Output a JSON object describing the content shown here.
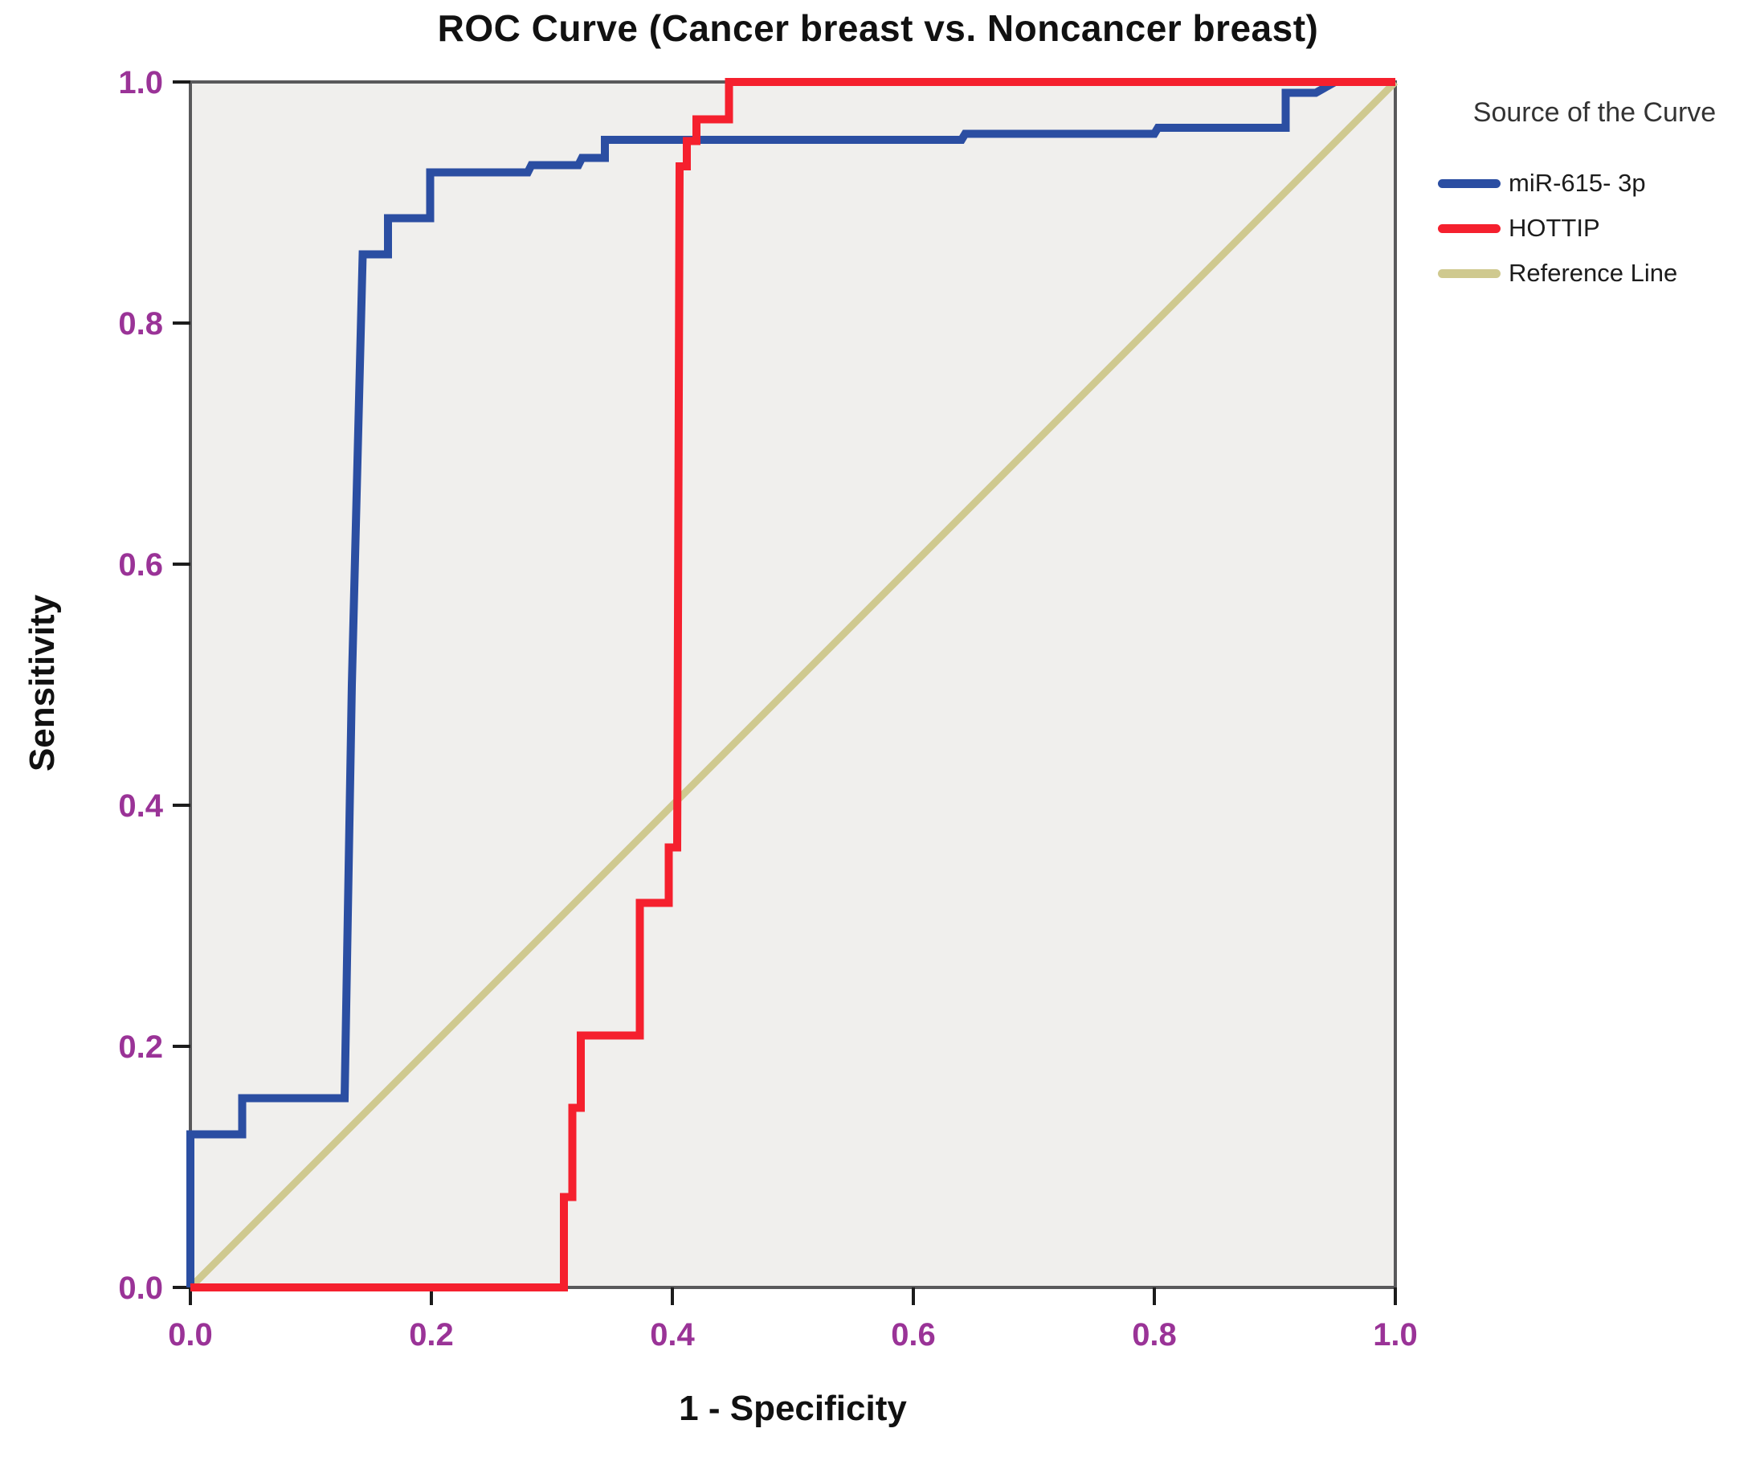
{
  "chart_data": {
    "type": "line",
    "title": "ROC Curve (Cancer breast vs. Noncancer breast)",
    "xlabel": "1 - Specificity",
    "ylabel": "Sensitivity",
    "xlim": [
      0,
      1
    ],
    "ylim": [
      0,
      1
    ],
    "grid": false,
    "legend_position": "right",
    "legend_title": "Source of the Curve",
    "x_ticks": [
      "0.0",
      "0.2",
      "0.4",
      "0.6",
      "0.8",
      "1.0"
    ],
    "y_ticks": [
      "0.0",
      "0.2",
      "0.4",
      "0.6",
      "0.8",
      "1.0"
    ],
    "colors": {
      "plot_background": "#f0efed",
      "plot_border": "#59595b",
      "tick_mark": "#1c1c1c",
      "tick_label": "#9a3397",
      "title": "#111111",
      "axis_title": "#111111",
      "legend_title": "#333333",
      "legend_text": "#1c1c1c"
    },
    "series": [
      {
        "name": "Reference Line",
        "color": "#cfc98f",
        "stroke_width": 9,
        "points": [
          [
            0,
            0
          ],
          [
            1,
            1
          ]
        ]
      },
      {
        "name": "miR-615- 3p",
        "color": "#2b4ea2",
        "stroke_width": 10,
        "points": [
          [
            0,
            0
          ],
          [
            0,
            0.127
          ],
          [
            0.043,
            0.127
          ],
          [
            0.043,
            0.157
          ],
          [
            0.128,
            0.157
          ],
          [
            0.134,
            0.5
          ],
          [
            0.143,
            0.857
          ],
          [
            0.164,
            0.857
          ],
          [
            0.164,
            0.887
          ],
          [
            0.199,
            0.887
          ],
          [
            0.199,
            0.925
          ],
          [
            0.28,
            0.925
          ],
          [
            0.283,
            0.931
          ],
          [
            0.322,
            0.931
          ],
          [
            0.325,
            0.937
          ],
          [
            0.344,
            0.937
          ],
          [
            0.344,
            0.952
          ],
          [
            0.64,
            0.952
          ],
          [
            0.643,
            0.957
          ],
          [
            0.8,
            0.957
          ],
          [
            0.803,
            0.962
          ],
          [
            0.909,
            0.962
          ],
          [
            0.909,
            0.991
          ],
          [
            0.934,
            0.991
          ],
          [
            0.95,
            1
          ],
          [
            1,
            1
          ]
        ]
      },
      {
        "name": "HOTTIP",
        "color": "#f5202e",
        "stroke_width": 10,
        "points": [
          [
            0,
            0
          ],
          [
            0.31,
            0
          ],
          [
            0.31,
            0.075
          ],
          [
            0.317,
            0.075
          ],
          [
            0.317,
            0.149
          ],
          [
            0.324,
            0.149
          ],
          [
            0.324,
            0.209
          ],
          [
            0.373,
            0.209
          ],
          [
            0.373,
            0.319
          ],
          [
            0.397,
            0.319
          ],
          [
            0.397,
            0.365
          ],
          [
            0.404,
            0.365
          ],
          [
            0.406,
            0.93
          ],
          [
            0.412,
            0.93
          ],
          [
            0.412,
            0.951
          ],
          [
            0.42,
            0.951
          ],
          [
            0.42,
            0.969
          ],
          [
            0.447,
            0.969
          ],
          [
            0.447,
            1
          ],
          [
            1,
            1
          ]
        ]
      }
    ],
    "legend_order": [
      1,
      2,
      0
    ]
  }
}
